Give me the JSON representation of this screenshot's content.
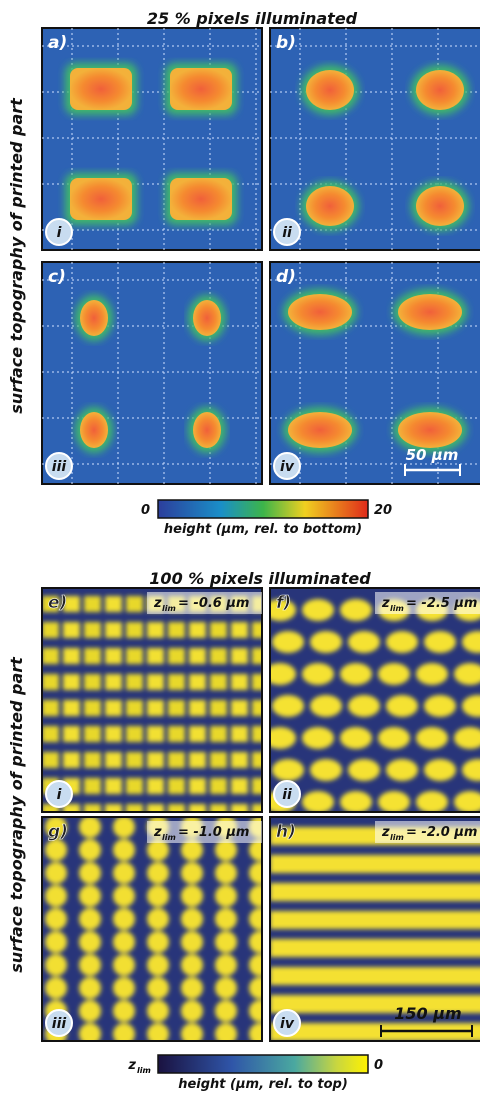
{
  "top": {
    "title": "25 % pixels illuminated",
    "y_label": "surface topography of printed part",
    "panels": [
      {
        "letter": "a)",
        "numeral": "i"
      },
      {
        "letter": "b)",
        "numeral": "ii"
      },
      {
        "letter": "c)",
        "numeral": "iii"
      },
      {
        "letter": "d)",
        "numeral": "iv"
      }
    ],
    "scale_bar": "50 µm",
    "colorbar": {
      "min": "0",
      "max": "20",
      "label": "height (µm, rel. to bottom)"
    }
  },
  "bottom": {
    "title": "100 % pixels illuminated",
    "y_label": "surface topography of printed part",
    "panels": [
      {
        "letter": "e)",
        "numeral": "i",
        "zlim": {
          "symbol": "z",
          "subscript": "lim",
          "value": "= -0.6 µm"
        }
      },
      {
        "letter": "f)",
        "numeral": "ii",
        "zlim": {
          "symbol": "z",
          "subscript": "lim",
          "value": "= -2.5 µm"
        }
      },
      {
        "letter": "g)",
        "numeral": "iii",
        "zlim": {
          "symbol": "z",
          "subscript": "lim",
          "value": "= -1.0 µm"
        }
      },
      {
        "letter": "h)",
        "numeral": "iv",
        "zlim": {
          "symbol": "z",
          "subscript": "lim",
          "value": "= -2.0 µm"
        }
      }
    ],
    "scale_bar": "150 µm",
    "colorbar": {
      "min_symbol": "z",
      "min_subscript": "lim",
      "max": "0",
      "label": "height (µm, rel. to top)"
    }
  }
}
